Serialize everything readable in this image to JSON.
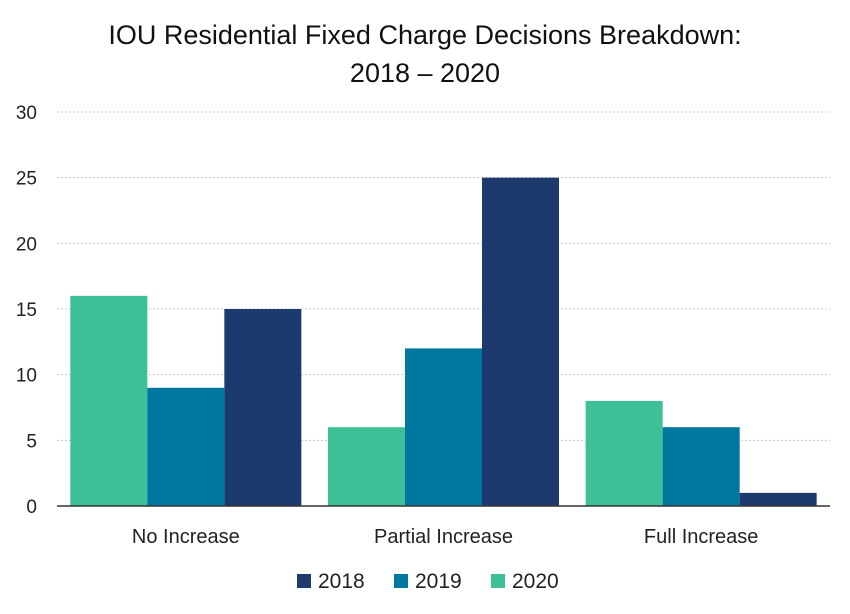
{
  "chart_data": {
    "type": "bar",
    "title_lines": [
      "IOU Residential Fixed Charge Decisions Breakdown:",
      "2018 – 2020"
    ],
    "xlabel": "",
    "ylabel": "",
    "categories": [
      "No Increase",
      "Partial Increase",
      "Full Increase"
    ],
    "series": [
      {
        "name": "2020",
        "color": "#3dbf97",
        "values": [
          16,
          6,
          8
        ]
      },
      {
        "name": "2019",
        "color": "#00779e",
        "values": [
          9,
          12,
          6
        ]
      },
      {
        "name": "2018",
        "color": "#1d3a6e",
        "values": [
          15,
          25,
          1
        ]
      }
    ],
    "legend_order": [
      "2018",
      "2019",
      "2020"
    ],
    "ylim": [
      0,
      30
    ],
    "yticks": [
      "0",
      "5",
      "10",
      "15",
      "20",
      "25",
      "30"
    ],
    "grid": true,
    "legend_position": "bottom"
  }
}
